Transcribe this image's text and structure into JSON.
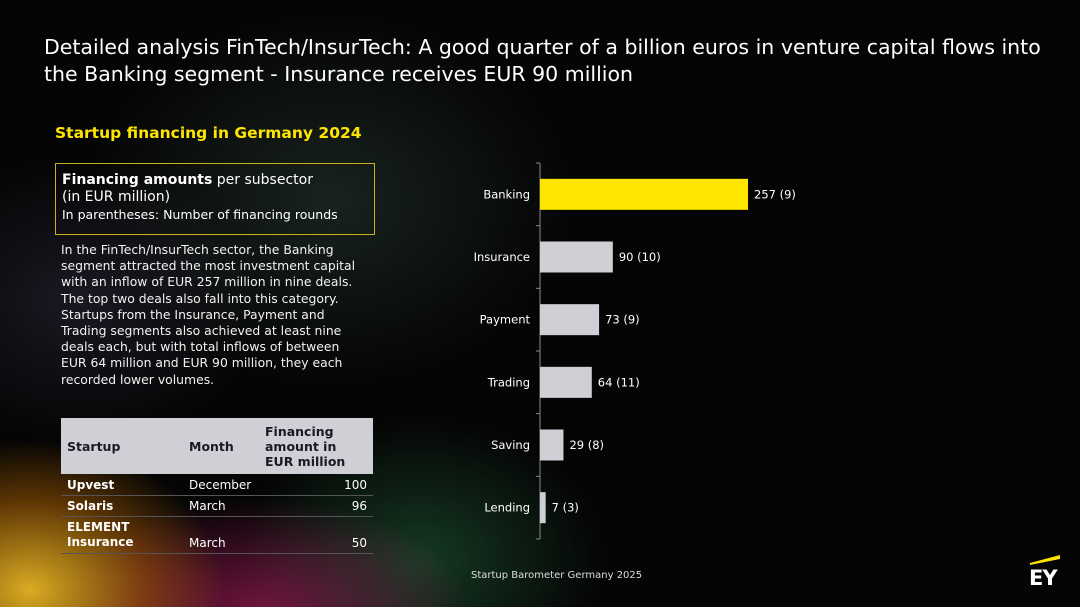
{
  "slide": {
    "title": "Detailed analysis FinTech/InsurTech: A good quarter of a billion euros in venture capital flows into the Banking segment - Insurance receives EUR 90 million",
    "subtitle": "Startup financing in Germany 2024",
    "footer": "Startup Barometer Germany 2025",
    "logo": "EY"
  },
  "infobox": {
    "bold": "Financing amounts",
    "rest": " per subsector",
    "unit": "(in EUR million)",
    "note": "In parentheses: Number of financing rounds"
  },
  "paragraph": "In the FinTech/InsurTech sector, the Banking segment attracted the most investment capital with an inflow of EUR 257 million in nine deals. The top two deals also fall into this category. Startups from the Insurance, Payment and Trading segments also achieved at least nine deals each, but with total inflows of between EUR 64 million and EUR 90 million, they each recorded lower volumes.",
  "table": {
    "headers": [
      "Startup",
      "Month",
      "Financing amount in EUR million"
    ],
    "rows": [
      {
        "startup": "Upvest",
        "month": "December",
        "amount": "100"
      },
      {
        "startup": "Solaris",
        "month": "March",
        "amount": "96"
      },
      {
        "startup": "ELEMENT Insurance",
        "month": "March",
        "amount": "50"
      }
    ]
  },
  "colors": {
    "highlight": "#ffe600",
    "bar": "#cfcfd6",
    "axis": "#8a8a8a"
  },
  "chart_data": {
    "type": "bar",
    "orientation": "horizontal",
    "categories": [
      "Banking",
      "Insurance",
      "Payment",
      "Trading",
      "Saving",
      "Lending"
    ],
    "values": [
      257,
      90,
      73,
      64,
      29,
      7
    ],
    "rounds": [
      9,
      10,
      9,
      11,
      8,
      3
    ],
    "highlight_index": 0,
    "title": "",
    "xlabel": "",
    "ylabel": "",
    "xlim": [
      0,
      257
    ],
    "grid": false,
    "legend": "none"
  }
}
